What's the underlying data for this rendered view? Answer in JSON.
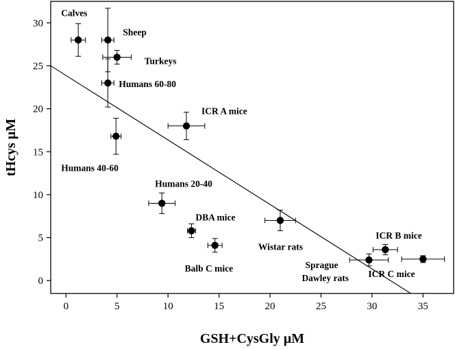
{
  "chart_data": {
    "type": "scatter",
    "title": "",
    "xlabel": "GSH+CysGly µM",
    "ylabel": "tHcys µM",
    "xlim": [
      -1.5,
      38
    ],
    "ylim": [
      -1.5,
      32.5
    ],
    "xticks": [
      0,
      5,
      10,
      15,
      20,
      25,
      30,
      35
    ],
    "yticks": [
      0,
      5,
      10,
      15,
      20,
      25,
      30
    ],
    "grid": false,
    "points": [
      {
        "label": "Calves",
        "x": 1.2,
        "y": 28.0,
        "xerr": 0.7,
        "yerr": 1.9
      },
      {
        "label": "Sheep",
        "x": 4.1,
        "y": 28.0,
        "xerr": 0.6,
        "yerr": 3.7
      },
      {
        "label": "Turkeys",
        "x": 5.0,
        "y": 26.0,
        "xerr": 1.4,
        "yerr": 0.8
      },
      {
        "label": "Humans 60-80",
        "x": 4.1,
        "y": 23.0,
        "xerr": 0.6,
        "yerr": 2.8
      },
      {
        "label": "ICR A mice",
        "x": 11.8,
        "y": 18.0,
        "xerr": 1.8,
        "yerr": 1.6
      },
      {
        "label": "Humans 40-60",
        "x": 4.9,
        "y": 16.8,
        "xerr": 0.5,
        "yerr": 2.1
      },
      {
        "label": "Humans 20-40",
        "x": 9.4,
        "y": 9.0,
        "xerr": 1.3,
        "yerr": 1.2
      },
      {
        "label": "DBA mice",
        "x": 12.3,
        "y": 5.8,
        "xerr": 0.4,
        "yerr": 0.8
      },
      {
        "label": "Balb C mice",
        "x": 14.6,
        "y": 4.1,
        "xerr": 0.7,
        "yerr": 0.8
      },
      {
        "label": "Wistar rats",
        "x": 21.0,
        "y": 7.0,
        "xerr": 1.5,
        "yerr": 1.2
      },
      {
        "label": "ICR B mice",
        "x": 31.3,
        "y": 3.6,
        "xerr": 1.2,
        "yerr": 0.6
      },
      {
        "label": "Sprague Dawley rats",
        "x": 29.7,
        "y": 2.4,
        "xerr": 1.9,
        "yerr": 0.7
      },
      {
        "label": "ICR C mice",
        "x": 35.0,
        "y": 2.5,
        "xerr": 2.1,
        "yerr": 0.4
      }
    ],
    "regression_line": {
      "x0": -1.5,
      "y0": 25.0,
      "x1": 33.8,
      "y1": -1.5
    }
  }
}
